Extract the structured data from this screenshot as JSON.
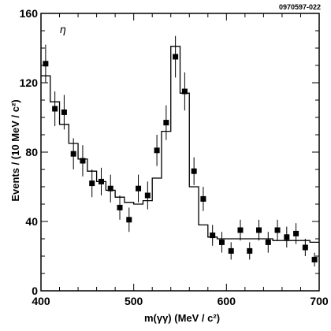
{
  "figure_id": "0970597-022",
  "chart_data": {
    "type": "scatter",
    "panel_label": "η",
    "xlabel": "m(γγ) (MeV / c²)",
    "ylabel": "Events / (10 MeV / c²)",
    "xlim": [
      400,
      700
    ],
    "ylim": [
      0,
      160
    ],
    "x_ticks": [
      400,
      500,
      600,
      700
    ],
    "y_ticks": [
      0,
      40,
      80,
      120,
      160
    ],
    "grid": false,
    "series": [
      {
        "kind": "points_with_errors",
        "x": [
          405,
          415,
          425,
          435,
          445,
          455,
          465,
          475,
          485,
          495,
          505,
          515,
          525,
          535,
          545,
          555,
          565,
          575,
          585,
          595,
          605,
          615,
          625,
          635,
          645,
          655,
          665,
          675,
          685,
          695
        ],
        "y": [
          131,
          105,
          103,
          79,
          75,
          62,
          63,
          59,
          48,
          41,
          59,
          55,
          81,
          97,
          135,
          115,
          69,
          53,
          32,
          28,
          23,
          35,
          23,
          35,
          28,
          35,
          31,
          33,
          25,
          18
        ],
        "err": [
          11,
          10,
          10,
          9,
          9,
          8,
          8,
          8,
          7,
          7,
          8,
          8,
          9,
          10,
          12,
          11,
          8,
          7,
          6,
          6,
          5,
          6,
          5,
          6,
          6,
          6,
          6,
          6,
          5,
          4
        ]
      },
      {
        "kind": "step_fit",
        "edges": [
          400,
          410,
          420,
          430,
          440,
          450,
          460,
          470,
          480,
          490,
          500,
          510,
          520,
          530,
          540,
          550,
          560,
          570,
          580,
          590,
          600,
          610,
          620,
          630,
          640,
          650,
          660,
          670,
          680,
          690,
          700
        ],
        "values": [
          124,
          109,
          96,
          85,
          76,
          69,
          63,
          58,
          54,
          51,
          50,
          52,
          65,
          92,
          141,
          114,
          60,
          38,
          31,
          30,
          30,
          30,
          30,
          30,
          30,
          29,
          29,
          29,
          29,
          28
        ]
      }
    ]
  }
}
